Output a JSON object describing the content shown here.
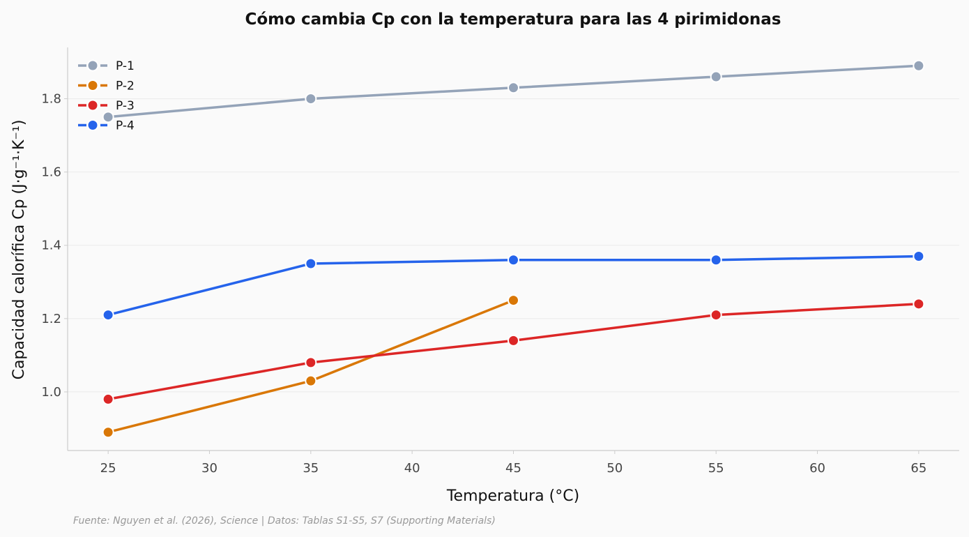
{
  "chart_data": {
    "type": "line",
    "title": "Cómo cambia Cp con la temperatura para las 4 pirimidonas",
    "xlabel": "Temperatura (°C)",
    "ylabel": "Capacidad calorífica Cp (J·g⁻¹·K⁻¹)",
    "xlim": [
      23,
      67
    ],
    "ylim": [
      0.84,
      1.94
    ],
    "xticks": [
      25,
      30,
      35,
      40,
      45,
      50,
      55,
      60,
      65
    ],
    "yticks": [
      1.0,
      1.2,
      1.4,
      1.6,
      1.8
    ],
    "ytick_labels": [
      "1.0",
      "1.2",
      "1.4",
      "1.6",
      "1.8"
    ],
    "grid": "horizontal",
    "legend_position": "top-left",
    "series": [
      {
        "name": "P-1",
        "color": "#94a3b8",
        "x": [
          25,
          35,
          45,
          55,
          65
        ],
        "values": [
          1.75,
          1.8,
          1.83,
          1.86,
          1.89
        ]
      },
      {
        "name": "P-2",
        "color": "#d97706",
        "x": [
          25,
          35,
          45
        ],
        "values": [
          0.89,
          1.03,
          1.25
        ]
      },
      {
        "name": "P-3",
        "color": "#dc2626",
        "x": [
          25,
          35,
          45,
          55,
          65
        ],
        "values": [
          0.98,
          1.08,
          1.14,
          1.21,
          1.24
        ]
      },
      {
        "name": "P-4",
        "color": "#2563eb",
        "x": [
          25,
          35,
          45,
          55,
          65
        ],
        "values": [
          1.21,
          1.35,
          1.36,
          1.36,
          1.37
        ]
      }
    ],
    "source": "Fuente: Nguyen et al. (2026), Science | Datos: Tablas S1-S5, S7 (Supporting Materials)"
  }
}
